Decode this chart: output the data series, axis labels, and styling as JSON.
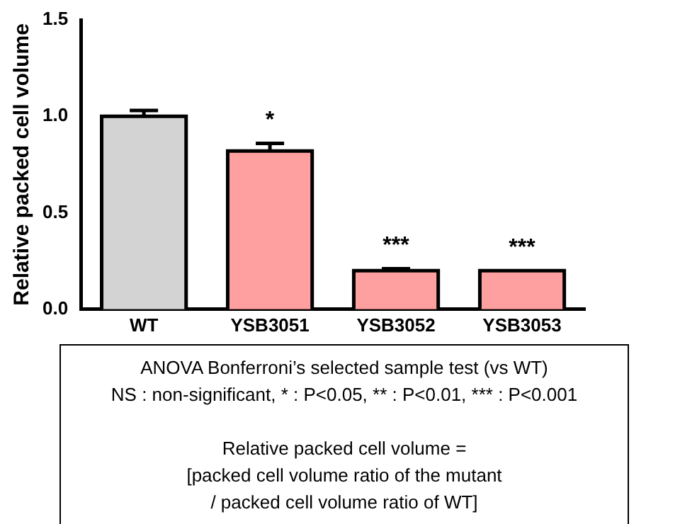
{
  "chart_data": {
    "type": "bar",
    "ylabel": "Relative packed cell volume",
    "categories": [
      "WT",
      "YSB3051",
      "YSB3052",
      "YSB3053"
    ],
    "values": [
      1.0,
      0.82,
      0.2,
      0.2
    ],
    "errors": [
      0.03,
      0.04,
      0.01,
      null
    ],
    "colors": [
      "#d3d3d3",
      "#ffa0a0",
      "#ffa0a0",
      "#ffa0a0"
    ],
    "ylim": [
      0,
      1.5
    ],
    "yticks": [
      {
        "value": 0,
        "label": "0.0"
      },
      {
        "value": 0.5,
        "label": "0.5"
      },
      {
        "value": 1,
        "label": "1.0"
      },
      {
        "value": 1.5,
        "label": "1.5"
      }
    ],
    "grid": false,
    "legend": false,
    "annotations": [
      {
        "text": "*",
        "x": "YSB3051",
        "y": 0.82
      },
      {
        "text": "***",
        "x": "YSB3052",
        "y": 0.2
      },
      {
        "text": "***",
        "x": "YSB3053",
        "y": 0.2
      },
      "ANOVA Bonferroni’s selected sample test (vs WT)",
      "NS : non-significant, * : P<0.05, ** : P<0.01, *** : P<0.001",
      "Relative packed cell volume =\n[packed cell volume ratio of the mutant\n/ packed cell volume ratio of WT]"
    ]
  }
}
